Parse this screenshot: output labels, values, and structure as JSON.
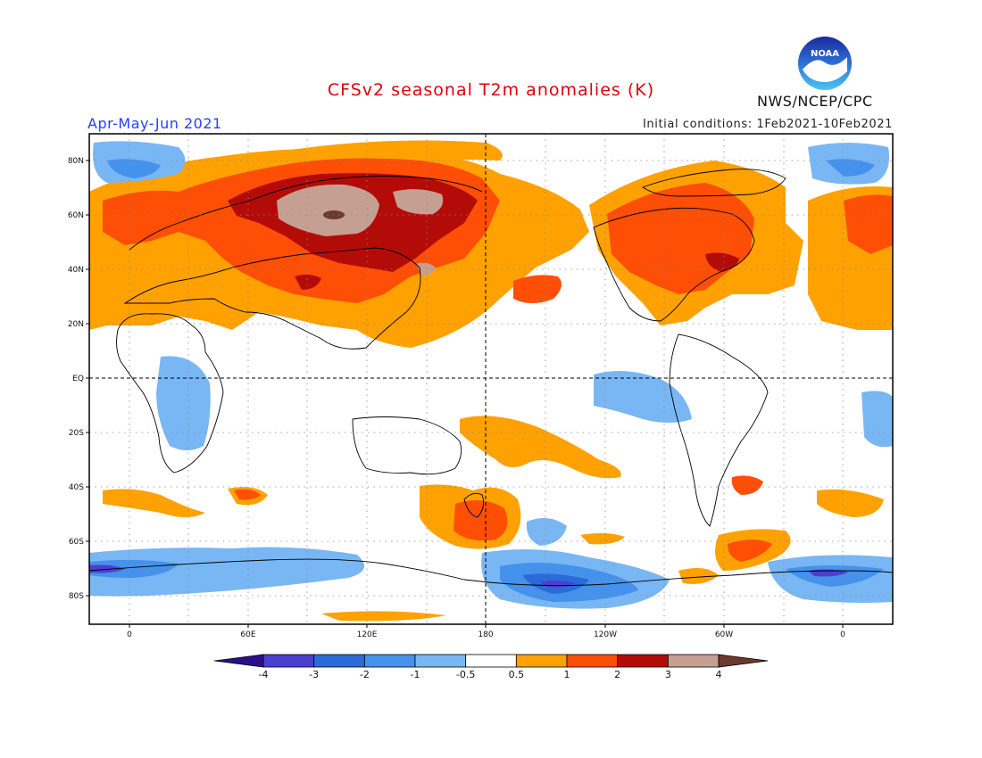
{
  "header": {
    "title": "CFSv2 seasonal T2m anomalies (K)",
    "period": "Apr-May-Jun 2021",
    "initial_conditions": "Initial conditions: 1Feb2021-10Feb2021",
    "agency": "NWS/NCEP/CPC",
    "logo_text": "NOAA"
  },
  "map": {
    "lat_labels": [
      "80N",
      "60N",
      "40N",
      "20N",
      "EQ",
      "20S",
      "40S",
      "60S",
      "80S"
    ],
    "lon_labels": [
      "0",
      "60E",
      "120E",
      "180",
      "120W",
      "60W",
      "0"
    ]
  },
  "colorbar": {
    "levels": [
      "-4",
      "-3",
      "-2",
      "-1",
      "-0.5",
      "0.5",
      "1",
      "2",
      "3",
      "4"
    ],
    "colors": [
      "#2b0f8a",
      "#4b3fd1",
      "#2a6ad9",
      "#4592ec",
      "#79b6f4",
      "#ffffff",
      "#ffa100",
      "#ff4e06",
      "#b30c08",
      "#c5a092",
      "#6b3a2d"
    ]
  },
  "colors": {
    "neg_weak": "#79b6f4",
    "neg_mod": "#4592ec",
    "neg_strong": "#2a6ad9",
    "neg_vstrong": "#4b3fd1",
    "neg_extreme": "#2b0f8a",
    "pos_weak": "#ffa100",
    "pos_mod": "#ff4e06",
    "pos_strong": "#b30c08",
    "pos_vstrong": "#c5a092",
    "pos_extreme": "#6b3a2d"
  }
}
